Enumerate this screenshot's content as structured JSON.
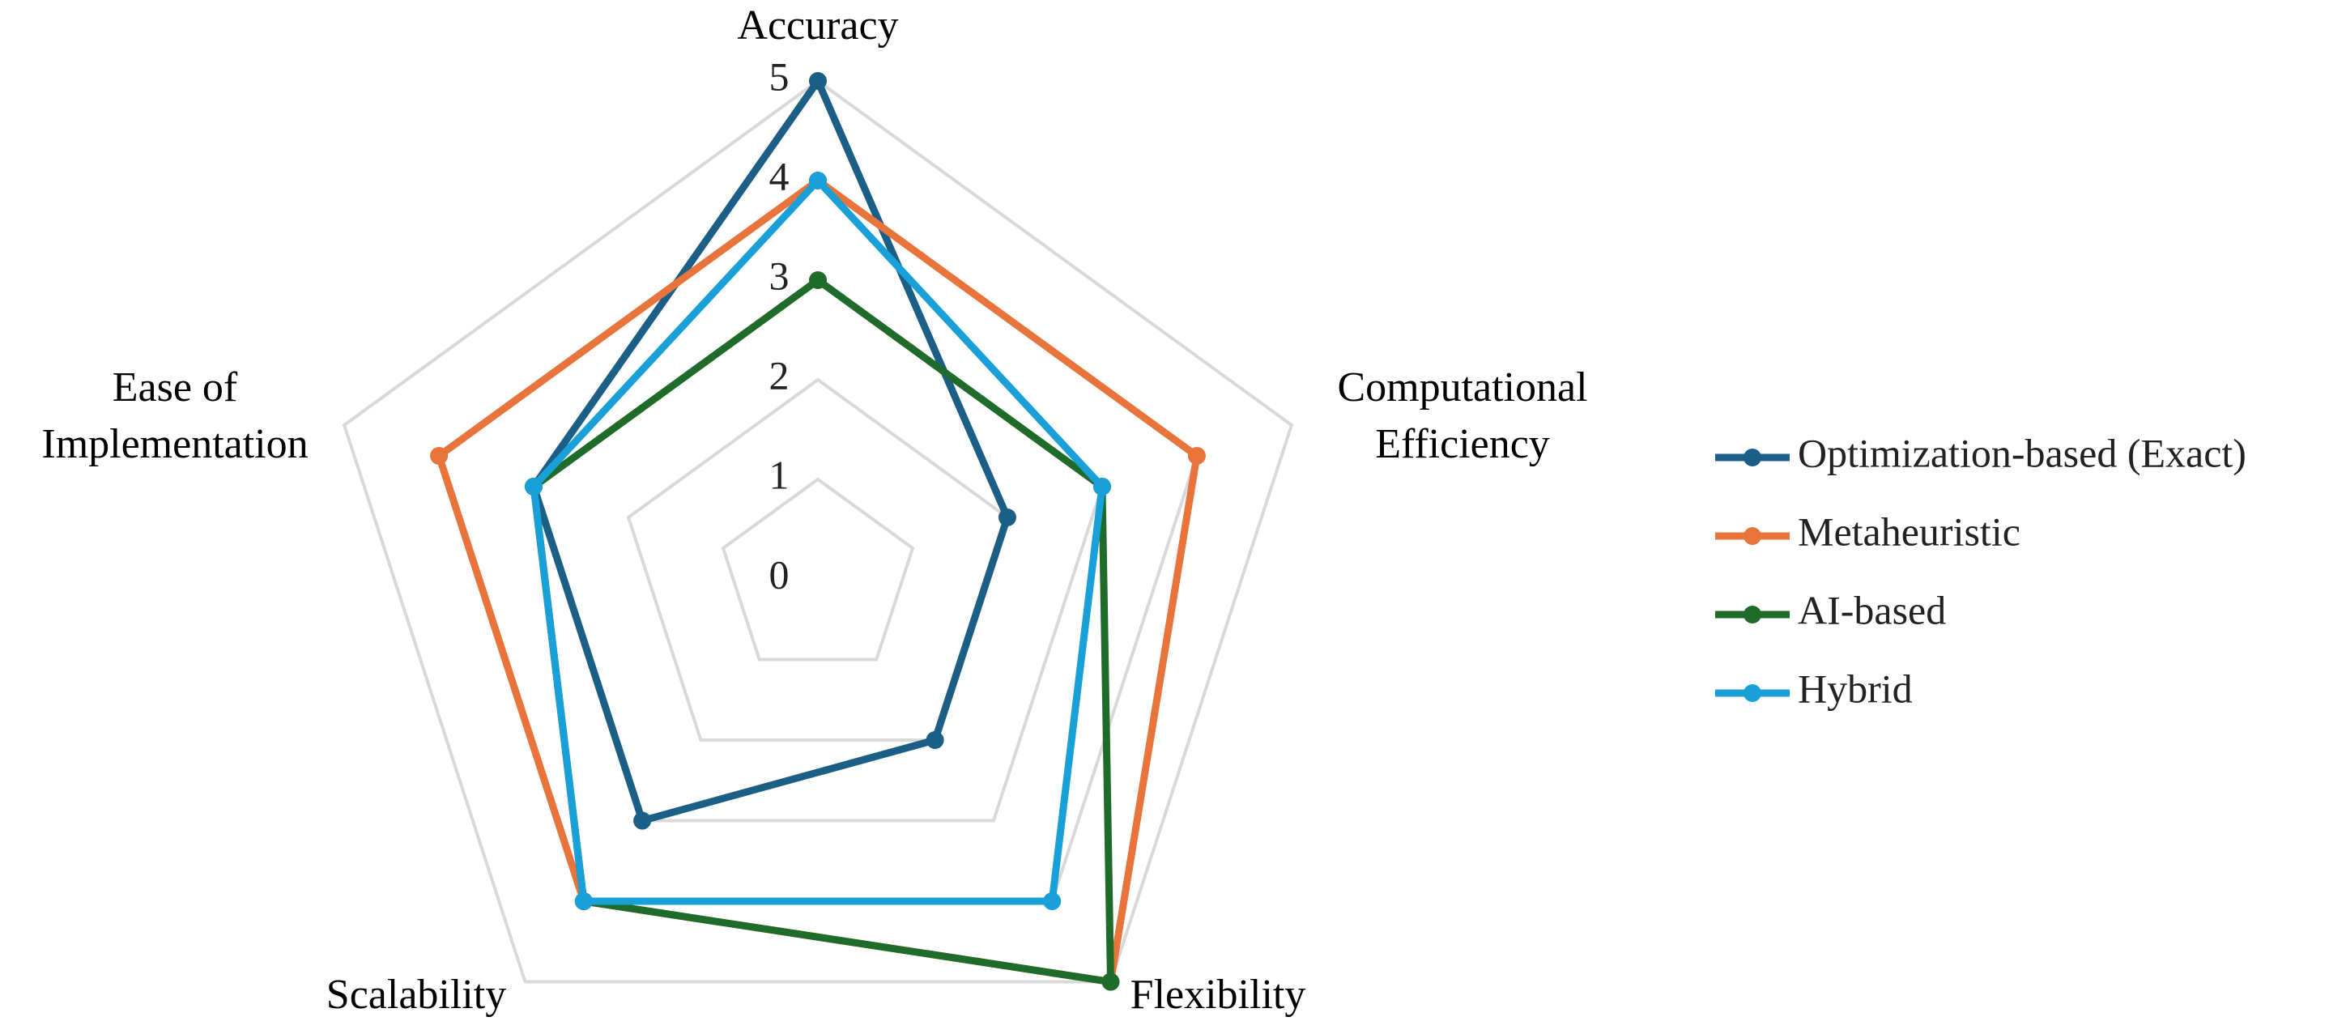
{
  "chart_data": {
    "type": "radar",
    "categories": [
      "Accuracy",
      "Computational Efficiency",
      "Flexibility",
      "Scalability",
      "Ease of Implementation"
    ],
    "ylim": [
      0,
      5
    ],
    "yticks": [
      0,
      1,
      2,
      3,
      4,
      5
    ],
    "grid": true,
    "legend": "right",
    "series": [
      {
        "name": "Optimization-based (Exact)",
        "color": "#1b5e86",
        "values": [
          5,
          2,
          2,
          3,
          3
        ]
      },
      {
        "name": "Metaheuristic",
        "color": "#e8743b",
        "values": [
          4,
          4,
          5,
          4,
          4
        ]
      },
      {
        "name": "AI-based",
        "color": "#1e6b2a",
        "values": [
          3,
          3,
          5,
          4,
          3
        ]
      },
      {
        "name": "Hybrid",
        "color": "#1aa0d8",
        "values": [
          4,
          3,
          4,
          4,
          3
        ]
      }
    ]
  }
}
